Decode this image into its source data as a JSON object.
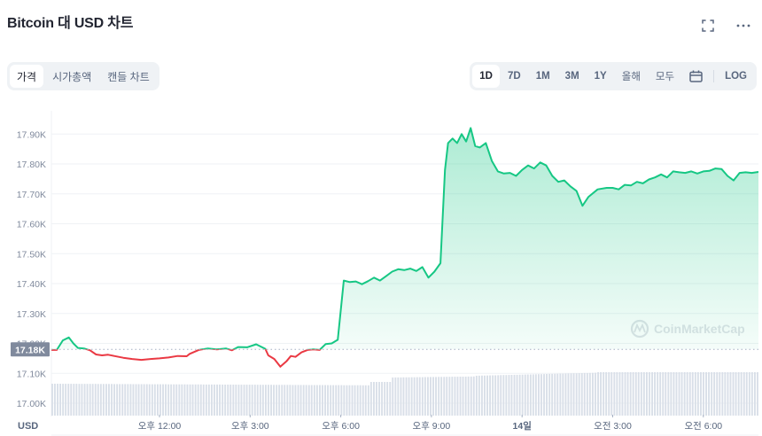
{
  "header": {
    "title": "Bitcoin 대 USD 차트",
    "fullscreen_icon": "expand-icon",
    "more_icon": "more-horizontal-icon"
  },
  "tabs": [
    {
      "label": "가격",
      "active": true
    },
    {
      "label": "시가총액",
      "active": false
    },
    {
      "label": "캔들 차트",
      "active": false
    }
  ],
  "ranges": [
    {
      "label": "1D",
      "active": true
    },
    {
      "label": "7D",
      "active": false
    },
    {
      "label": "1M",
      "active": false
    },
    {
      "label": "3M",
      "active": false
    },
    {
      "label": "1Y",
      "active": false
    },
    {
      "label": "올해",
      "active": false
    },
    {
      "label": "모두",
      "active": false
    }
  ],
  "calendar_icon": "calendar-icon",
  "log_label": "LOG",
  "watermark": "CoinMarketCap",
  "currency_label": "USD",
  "reference_price_label": "17.18K",
  "colors": {
    "up": "#16c784",
    "down": "#ea3943",
    "volume": "#d9dfe8",
    "grid": "#eff2f5",
    "axis_text": "#808a9d",
    "ref_badge": "#808a9d"
  },
  "chart_data": {
    "type": "area",
    "title": "Bitcoin 대 USD 차트",
    "xlabel": "",
    "ylabel": "USD",
    "ylim": [
      16980,
      17950
    ],
    "y_ticks": [
      "17.00K",
      "17.10K",
      "17.20K",
      "17.30K",
      "17.40K",
      "17.50K",
      "17.60K",
      "17.70K",
      "17.80K",
      "17.90K"
    ],
    "x_ticks": [
      "오후 12:00",
      "오후 3:00",
      "오후 6:00",
      "오후 9:00",
      "14일",
      "오전 3:00",
      "오전 6:00"
    ],
    "reference_price": 17180,
    "grid": true,
    "legend": "none",
    "x_hours_from_1200": [
      -3.6,
      -3.4,
      -3.2,
      -3.0,
      -2.85,
      -2.7,
      -2.5,
      -2.3,
      -2.1,
      -1.9,
      -1.7,
      -1.5,
      -1.2,
      -0.9,
      -0.6,
      -0.3,
      0.0,
      0.3,
      0.6,
      0.9,
      1.0,
      1.3,
      1.6,
      1.9,
      2.2,
      2.4,
      2.6,
      2.9,
      3.2,
      3.5,
      3.6,
      3.8,
      4.0,
      4.2,
      4.35,
      4.5,
      4.7,
      4.9,
      5.1,
      5.3,
      5.5,
      5.7,
      5.9,
      6.1,
      6.3,
      6.5,
      6.7,
      6.9,
      7.1,
      7.3,
      7.5,
      7.7,
      7.9,
      8.1,
      8.3,
      8.5,
      8.7,
      8.9,
      9.1,
      9.3,
      9.45,
      9.55,
      9.7,
      9.85,
      10.0,
      10.15,
      10.3,
      10.45,
      10.6,
      10.8,
      11.0,
      11.2,
      11.4,
      11.6,
      11.8,
      12.0,
      12.2,
      12.4,
      12.6,
      12.8,
      13.0,
      13.2,
      13.4,
      13.6,
      13.8,
      14.0,
      14.2,
      14.5,
      14.8,
      15.0,
      15.2,
      15.4,
      15.6,
      15.8,
      16.0,
      16.2,
      16.4,
      16.6,
      16.8,
      17.0,
      17.2,
      17.4,
      17.6,
      17.8,
      18.0,
      18.2,
      18.4,
      18.6,
      18.8,
      19.0,
      19.2,
      19.4,
      19.6,
      19.8,
      19.9
    ],
    "price": [
      17178,
      17178,
      17210,
      17220,
      17200,
      17185,
      17183,
      17177,
      17163,
      17160,
      17162,
      17158,
      17152,
      17148,
      17145,
      17148,
      17150,
      17153,
      17158,
      17157,
      17165,
      17178,
      17183,
      17180,
      17183,
      17177,
      17188,
      17187,
      17197,
      17182,
      17160,
      17148,
      17122,
      17140,
      17158,
      17155,
      17170,
      17178,
      17180,
      17178,
      17198,
      17200,
      17212,
      17410,
      17405,
      17407,
      17398,
      17408,
      17420,
      17410,
      17425,
      17440,
      17448,
      17445,
      17450,
      17442,
      17455,
      17420,
      17440,
      17468,
      17780,
      17870,
      17885,
      17870,
      17900,
      17875,
      17920,
      17860,
      17855,
      17870,
      17810,
      17775,
      17768,
      17770,
      17760,
      17780,
      17795,
      17785,
      17805,
      17795,
      17760,
      17740,
      17745,
      17725,
      17710,
      17660,
      17690,
      17715,
      17720,
      17720,
      17715,
      17730,
      17728,
      17740,
      17735,
      17748,
      17755,
      17765,
      17755,
      17775,
      17772,
      17770,
      17775,
      17768,
      17775,
      17777,
      17785,
      17783,
      17760,
      17745,
      17770,
      17772,
      17770,
      17773,
      17773
    ],
    "volume_relative": "bars rising from ~0.60 of band height (left) to ~0.82 (right), step-up near 오후 10:30"
  }
}
